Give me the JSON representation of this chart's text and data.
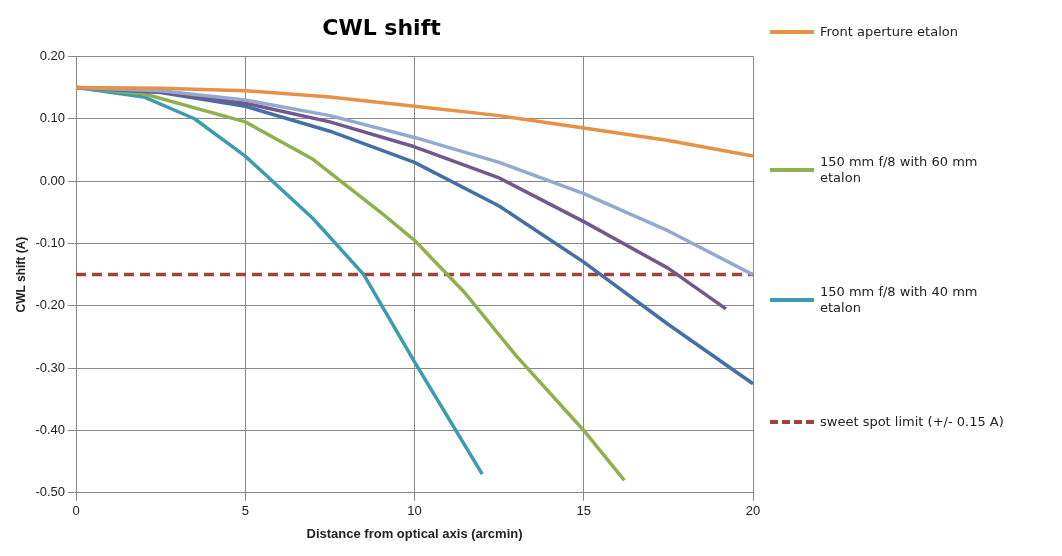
{
  "chart_data": {
    "type": "line",
    "title": "CWL shift",
    "xlabel": "Distance from optical axis (arcmin)",
    "ylabel": "CWL shift (A)",
    "xlim": [
      0,
      20
    ],
    "xticks": [
      0,
      5,
      10,
      15,
      20
    ],
    "ylim": [
      -0.5,
      0.2
    ],
    "yticks": [
      {
        "value": -0.5,
        "label": "-0.50"
      },
      {
        "value": -0.4,
        "label": "-0.40"
      },
      {
        "value": -0.3,
        "label": "-0.30"
      },
      {
        "value": -0.2,
        "label": "-0.20"
      },
      {
        "value": -0.1,
        "label": "-0.10"
      },
      {
        "value": 0,
        "label": "0.00"
      },
      {
        "value": 0.1,
        "label": "0.10"
      },
      {
        "value": 0.2,
        "label": "0.20"
      }
    ],
    "grid": true,
    "legend": "right",
    "marker": "none",
    "series": [
      {
        "name": "Front aperture etalon",
        "color": "#e69147",
        "x": [
          0,
          2.5,
          5,
          7.5,
          10,
          12.5,
          15,
          17.5,
          20
        ],
        "values": [
          0.15,
          0.149,
          0.145,
          0.135,
          0.12,
          0.105,
          0.085,
          0.065,
          0.04
        ]
      },
      {
        "color": "#93a9cf",
        "x": [
          0,
          2.5,
          5,
          7.5,
          10,
          12.5,
          15,
          17.5,
          20
        ],
        "values": [
          0.15,
          0.145,
          0.13,
          0.105,
          0.07,
          0.03,
          -0.02,
          -0.08,
          -0.15
        ]
      },
      {
        "color": "#71588f",
        "x": [
          0,
          2.5,
          5,
          7.5,
          10,
          12.5,
          15,
          17.5,
          19.2
        ],
        "values": [
          0.15,
          0.143,
          0.125,
          0.095,
          0.055,
          0.005,
          -0.065,
          -0.14,
          -0.205
        ]
      },
      {
        "color": "#4470a6",
        "x": [
          0,
          2.5,
          5,
          7.5,
          10,
          12.5,
          15,
          17.5,
          20
        ],
        "values": [
          0.15,
          0.142,
          0.12,
          0.08,
          0.03,
          -0.04,
          -0.13,
          -0.23,
          -0.325
        ]
      },
      {
        "name": "150 mm f/8 with 60 mm etalon",
        "color": "#8fb04d",
        "x": [
          0,
          2,
          5,
          7,
          9,
          10,
          11.5,
          13,
          15,
          16.2
        ],
        "values": [
          0.15,
          0.14,
          0.095,
          0.035,
          -0.05,
          -0.095,
          -0.18,
          -0.28,
          -0.4,
          -0.48
        ]
      },
      {
        "name": "150 mm f/8 with 40 mm etalon",
        "color": "#3d9bb0",
        "x": [
          0,
          2,
          3.5,
          5,
          7,
          8.5,
          10,
          11,
          12
        ],
        "values": [
          0.15,
          0.135,
          0.1,
          0.04,
          -0.06,
          -0.15,
          -0.29,
          -0.38,
          -0.47
        ]
      }
    ],
    "ref_lines": [
      {
        "axis": "y",
        "value": -0.15,
        "label": "sweet spot limit (+/- 0.15 A)",
        "color": "#a5403d",
        "line_style": "dashed"
      }
    ]
  }
}
